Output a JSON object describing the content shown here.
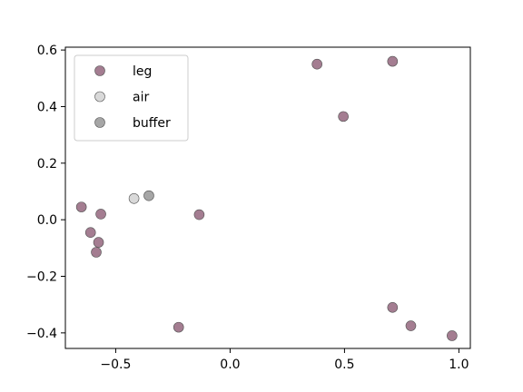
{
  "chart_data": {
    "type": "scatter",
    "title": "",
    "xlabel": "",
    "ylabel": "",
    "xlim": [
      -0.72,
      1.05
    ],
    "ylim": [
      -0.455,
      0.61
    ],
    "xticks": [
      -0.5,
      0.0,
      0.5,
      1.0
    ],
    "xtick_labels": [
      "−0.5",
      "0.0",
      "0.5",
      "1.0"
    ],
    "yticks": [
      -0.4,
      -0.2,
      0.0,
      0.2,
      0.4,
      0.6
    ],
    "ytick_labels": [
      "−0.4",
      "−0.2",
      "0.0",
      "0.2",
      "0.4",
      "0.6"
    ],
    "grid": false,
    "legend_position": "upper-left",
    "series": [
      {
        "name": "leg",
        "color": "#a47d91",
        "points": [
          {
            "x": -0.65,
            "y": 0.045
          },
          {
            "x": -0.61,
            "y": -0.045
          },
          {
            "x": -0.585,
            "y": -0.115
          },
          {
            "x": -0.575,
            "y": -0.08
          },
          {
            "x": -0.565,
            "y": 0.02
          },
          {
            "x": -0.225,
            "y": -0.38
          },
          {
            "x": -0.135,
            "y": 0.018
          },
          {
            "x": 0.38,
            "y": 0.55
          },
          {
            "x": 0.495,
            "y": 0.365
          },
          {
            "x": 0.71,
            "y": 0.56
          },
          {
            "x": 0.71,
            "y": -0.31
          },
          {
            "x": 0.79,
            "y": -0.375
          },
          {
            "x": 0.97,
            "y": -0.41
          }
        ]
      },
      {
        "name": "air",
        "color": "#d9d9d9",
        "points": [
          {
            "x": -0.42,
            "y": 0.075
          }
        ]
      },
      {
        "name": "buffer",
        "color": "#a6a6a6",
        "points": [
          {
            "x": -0.355,
            "y": 0.085
          }
        ]
      }
    ]
  }
}
